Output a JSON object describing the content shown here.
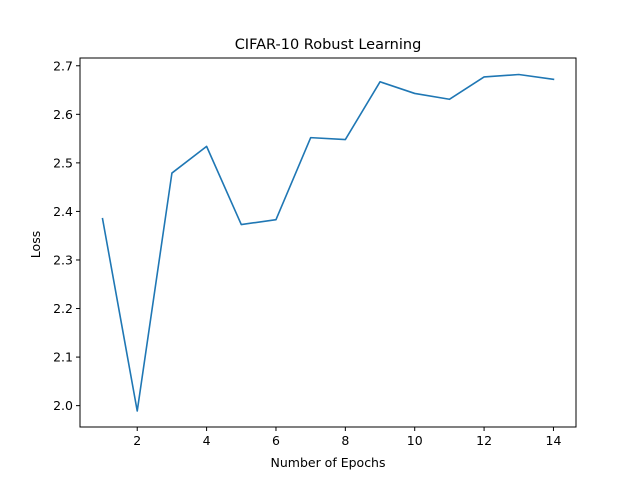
{
  "chart_data": {
    "type": "line",
    "title": "CIFAR-10 Robust Learning",
    "xlabel": "Number of Epochs",
    "ylabel": "Loss",
    "xlim": [
      0.35,
      14.65
    ],
    "ylim": [
      1.956,
      2.716
    ],
    "xticks": [
      2,
      4,
      6,
      8,
      10,
      12,
      14
    ],
    "yticks": [
      2.0,
      2.1,
      2.2,
      2.3,
      2.4,
      2.5,
      2.6,
      2.7
    ],
    "ytick_labels": [
      "2.0",
      "2.1",
      "2.2",
      "2.3",
      "2.4",
      "2.5",
      "2.6",
      "2.7"
    ],
    "grid": false,
    "series": [
      {
        "color": "#1f77b4",
        "x": [
          1,
          2,
          3,
          4,
          5,
          6,
          7,
          8,
          9,
          10,
          11,
          12,
          13,
          14
        ],
        "y": [
          2.385,
          1.989,
          2.479,
          2.534,
          2.373,
          2.383,
          2.552,
          2.548,
          2.667,
          2.643,
          2.631,
          2.677,
          2.682,
          2.672
        ]
      }
    ]
  }
}
